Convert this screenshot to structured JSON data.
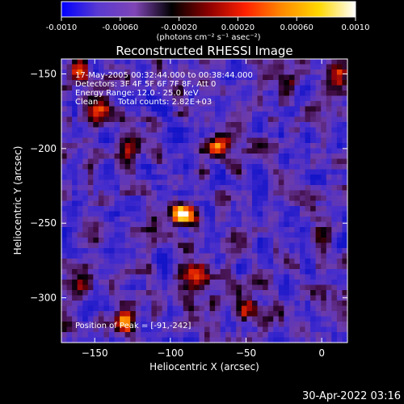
{
  "colorbar": {
    "ticks": [
      "-0.0010",
      "-0.00060",
      "-0.00020",
      "0.00020",
      "0.00060",
      "0.0010"
    ],
    "unit_label": "(photons cm⁻² s⁻¹ asec⁻²)",
    "colors": [
      "#0000ff",
      "#5a3ad0",
      "#7f45b6",
      "#000000",
      "#8b0000",
      "#ff2000",
      "#ff8a00",
      "#ffd800",
      "#ffffff"
    ]
  },
  "chart_data": {
    "type": "heatmap",
    "title": "Reconstructed RHESSI Image",
    "xlabel": "Heliocentric X (arcsec)",
    "ylabel": "Heliocentric Y (arcsec)",
    "xlim": [
      -172,
      17
    ],
    "ylim": [
      -330,
      -140
    ],
    "xticks": [
      -150,
      -100,
      -50,
      0
    ],
    "yticks": [
      -150,
      -200,
      -250,
      -300
    ],
    "sources": [
      {
        "x": -92,
        "y": -244,
        "intensity": 0.95
      },
      {
        "x": -70,
        "y": -198,
        "intensity": 0.9
      },
      {
        "x": -81,
        "y": -285,
        "intensity": 0.8
      },
      {
        "x": -128,
        "y": -200,
        "intensity": 0.6
      },
      {
        "x": -148,
        "y": -175,
        "intensity": 0.55
      },
      {
        "x": -160,
        "y": -150,
        "intensity": 0.55
      },
      {
        "x": 10,
        "y": -150,
        "intensity": 0.75
      },
      {
        "x": -25,
        "y": -160,
        "intensity": 0.4
      },
      {
        "x": -130,
        "y": -315,
        "intensity": 0.55
      },
      {
        "x": -50,
        "y": -310,
        "intensity": 0.45
      },
      {
        "x": 0,
        "y": -255,
        "intensity": 0.45
      },
      {
        "x": -160,
        "y": -290,
        "intensity": 0.4
      }
    ],
    "annotations": {
      "time": "17-May-2005 00:32:44.000 to 00:38:44.000",
      "detectors": "Detectors: 3F 4F 5F 6F 7F 8F, Att 0",
      "energy": "Energy Range: 12.0 - 25.0 keV",
      "clean": "Clean",
      "counts": "Total counts: 2.82E+03",
      "peak": "Position of Peak = [-91,-242]"
    }
  },
  "timestamp": "30-Apr-2022 03:16"
}
